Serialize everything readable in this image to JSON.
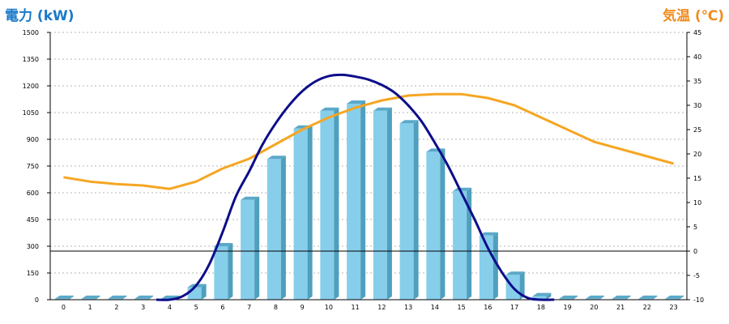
{
  "chart_data": {
    "type": "bar",
    "left_axis_title": "電力 (kW)",
    "right_axis_title": "気温 (℃)",
    "x": [
      0,
      1,
      2,
      3,
      4,
      5,
      6,
      7,
      8,
      9,
      10,
      11,
      12,
      13,
      14,
      15,
      16,
      17,
      18,
      19,
      20,
      21,
      22,
      23
    ],
    "y_left_range": [
      0,
      1500
    ],
    "y_left_ticks": [
      0,
      150,
      300,
      450,
      600,
      750,
      900,
      1050,
      1200,
      1350,
      1500
    ],
    "y_right_range": [
      -10,
      45
    ],
    "y_right_ticks": [
      -10,
      -5,
      0,
      5,
      10,
      15,
      20,
      25,
      30,
      35,
      40,
      45
    ],
    "bar_series": {
      "values": [
        5,
        5,
        5,
        5,
        5,
        70,
        300,
        560,
        790,
        960,
        1060,
        1100,
        1060,
        990,
        830,
        610,
        360,
        140,
        20,
        5,
        5,
        5,
        5,
        5
      ]
    },
    "power_curve": {
      "x": [
        3.5,
        4,
        4.5,
        5,
        5.5,
        6,
        6.5,
        7,
        7.5,
        8,
        8.5,
        9,
        9.5,
        10,
        10.5,
        11,
        11.5,
        12,
        12.5,
        13,
        13.5,
        14,
        14.5,
        15,
        15.5,
        16,
        16.5,
        17,
        17.5,
        18,
        18.5
      ],
      "values": [
        0,
        0,
        20,
        80,
        200,
        380,
        580,
        720,
        870,
        990,
        1090,
        1170,
        1225,
        1255,
        1262,
        1252,
        1235,
        1205,
        1160,
        1090,
        1000,
        880,
        750,
        600,
        450,
        290,
        160,
        60,
        10,
        0,
        0
      ]
    },
    "temperature_series": {
      "x": [
        0,
        1,
        2,
        3,
        4,
        5,
        6,
        7,
        8,
        9,
        10,
        11,
        12,
        13,
        14,
        15,
        16,
        17,
        18,
        19,
        20,
        21,
        22,
        23
      ],
      "values": [
        15.2,
        14.3,
        13.8,
        13.5,
        12.8,
        14.3,
        17.0,
        19.0,
        22.0,
        25.0,
        27.5,
        29.5,
        31.0,
        32.0,
        32.3,
        32.3,
        31.5,
        30.0,
        27.5,
        25.0,
        22.5,
        21.0,
        19.5,
        18.0
      ]
    },
    "colors": {
      "bar_front": "#87ceeb",
      "bar_side": "#4f9fbe",
      "bar_top": "#5ba9c9",
      "power_line": "#0d0d8a",
      "temperature_line": "#f5a623",
      "left_title": "#1a7ac9",
      "right_title": "#f08c1e"
    },
    "grid": "dotted-horizontal"
  }
}
